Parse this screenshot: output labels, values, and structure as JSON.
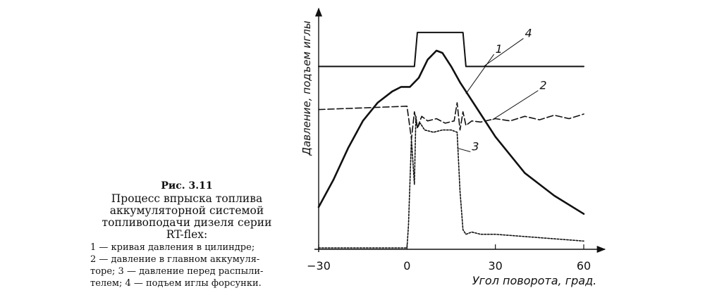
{
  "caption": {
    "figure_number": "Рис. 3.11",
    "title_lines": [
      "Процесс впрыска топлива",
      "аккумуляторной системой",
      "топливоподачи дизеля серии",
      "RT-flex:"
    ],
    "legend_lines": [
      "1 — кривая давления в цилиндре;",
      "2 — давление в главном аккумуля-",
      "торе; 3 — давление перед распыли-",
      "телем; 4 — подъем иглы форсунки."
    ]
  },
  "chart_data": {
    "type": "line",
    "title": "",
    "xlabel": "Угол поворота, град.",
    "ylabel": "Давление, подъем иглы",
    "xlim": [
      -30,
      60
    ],
    "xticks": [
      -30,
      0,
      30,
      60
    ],
    "xtick_labels": [
      "−30",
      "0",
      "30",
      "60"
    ],
    "ylim": [
      0,
      100
    ],
    "y_units": "relative (no scale shown)",
    "series": [
      {
        "name": "1",
        "label": "1",
        "description": "кривая давления в цилиндре",
        "style": "solid-thick",
        "x": [
          -30,
          -25,
          -20,
          -15,
          -10,
          -5,
          -2,
          1,
          4,
          7,
          10,
          12,
          15,
          18,
          20,
          25,
          30,
          40,
          50,
          60
        ],
        "y": [
          18,
          30,
          44,
          56,
          64,
          69,
          71,
          71,
          75,
          83,
          87,
          86,
          80,
          73,
          69,
          59,
          49,
          33,
          23,
          15
        ]
      },
      {
        "name": "2",
        "label": "2",
        "description": "давление в главном аккумуляторе",
        "style": "dashed",
        "x": [
          -30,
          -20,
          -10,
          0,
          1.5,
          2.5,
          3.5,
          5,
          7,
          10,
          13,
          16,
          17,
          18,
          19,
          20,
          22,
          25,
          30,
          35,
          40,
          45,
          50,
          55,
          60
        ],
        "y": [
          61,
          61.5,
          62,
          62.5,
          48,
          60,
          53,
          58,
          56,
          57,
          55,
          56,
          64,
          52,
          60,
          54,
          56,
          55.5,
          57,
          56,
          58,
          56.5,
          58.5,
          57,
          59
        ]
      },
      {
        "name": "3",
        "label": "3",
        "description": "давление перед распылителем",
        "style": "dotted",
        "x": [
          -30,
          0,
          0.5,
          1.5,
          2.5,
          3,
          3.5,
          4.5,
          6,
          9,
          12,
          15,
          17,
          18,
          19,
          20,
          22,
          25,
          30,
          40,
          50,
          60
        ],
        "y": [
          0,
          0,
          10,
          48,
          28,
          58,
          53,
          55,
          52,
          51,
          52,
          52,
          51,
          25,
          8,
          6,
          7,
          6,
          6,
          5,
          4,
          3
        ]
      },
      {
        "name": "4",
        "label": "4",
        "description": "подъем иглы форсунки",
        "style": "solid",
        "x": [
          -30,
          2.5,
          3.5,
          19,
          20,
          30,
          40,
          50,
          60
        ],
        "y": [
          80,
          80,
          95,
          95,
          80,
          80,
          80,
          80,
          80
        ]
      }
    ],
    "annotations": [
      {
        "text": "1",
        "target_series": "1"
      },
      {
        "text": "2",
        "target_series": "2"
      },
      {
        "text": "3",
        "target_series": "3"
      },
      {
        "text": "4",
        "target_series": "4"
      }
    ]
  }
}
